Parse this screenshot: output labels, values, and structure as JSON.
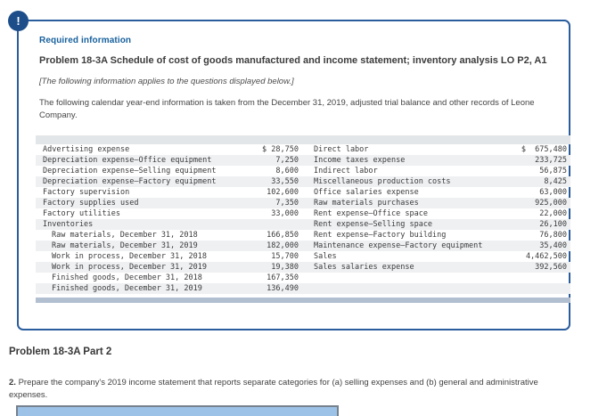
{
  "colors": {
    "box_border_blue": "#2a5d9e",
    "alert_circle_blue": "#1d4e89",
    "required_label_blue": "#17609d",
    "row_stripe_gray": "#eef0f2",
    "scrollband_blue_gray": "#b2bfd0",
    "bottom_bar_blue": "#9cc2e8"
  },
  "alert": {
    "icon_glyph": "!"
  },
  "box": {
    "required_label": "Required information",
    "title": "Problem 18-3A Schedule of cost of goods manufactured and income statement; inventory analysis LO P2, A1",
    "applies_note": "[The following information applies to the questions displayed below.]",
    "intro": "The following calendar year-end information is taken from the December 31, 2019, adjusted trial balance and other records of Leone Company."
  },
  "table": {
    "rows": [
      {
        "l1": "Advertising expense",
        "v1": "$ 28,750",
        "l2": "Direct labor",
        "v2": "$  675,480",
        "indent": false
      },
      {
        "l1": "Depreciation expense—Office equipment",
        "v1": "7,250",
        "l2": "Income taxes expense",
        "v2": "233,725",
        "indent": false
      },
      {
        "l1": "Depreciation expense—Selling equipment",
        "v1": "8,600",
        "l2": "Indirect labor",
        "v2": "56,875",
        "indent": false
      },
      {
        "l1": "Depreciation expense—Factory equipment",
        "v1": "33,550",
        "l2": "Miscellaneous production costs",
        "v2": "8,425",
        "indent": false
      },
      {
        "l1": "Factory supervision",
        "v1": "102,600",
        "l2": "Office salaries expense",
        "v2": "63,000",
        "indent": false
      },
      {
        "l1": "Factory supplies used",
        "v1": "7,350",
        "l2": "Raw materials purchases",
        "v2": "925,000",
        "indent": false
      },
      {
        "l1": "Factory utilities",
        "v1": "33,000",
        "l2": "Rent expense—Office space",
        "v2": "22,000",
        "indent": false
      },
      {
        "l1": "Inventories",
        "v1": "",
        "l2": "Rent expense—Selling space",
        "v2": "26,100",
        "indent": false
      },
      {
        "l1": "Raw materials, December 31, 2018",
        "v1": "166,850",
        "l2": "Rent expense—Factory building",
        "v2": "76,800",
        "indent": true
      },
      {
        "l1": "Raw materials, December 31, 2019",
        "v1": "182,000",
        "l2": "Maintenance expense—Factory equipment",
        "v2": "35,400",
        "indent": true
      },
      {
        "l1": "Work in process, December 31, 2018",
        "v1": "15,700",
        "l2": "Sales",
        "v2": "4,462,500",
        "indent": true
      },
      {
        "l1": "Work in process, December 31, 2019",
        "v1": "19,380",
        "l2": "Sales salaries expense",
        "v2": "392,560",
        "indent": true
      },
      {
        "l1": "Finished goods, December 31, 2018",
        "v1": "167,350",
        "l2": "",
        "v2": "",
        "indent": true
      },
      {
        "l1": "Finished goods, December 31, 2019",
        "v1": "136,490",
        "l2": "",
        "v2": "",
        "indent": true
      }
    ]
  },
  "part2": {
    "heading": "Problem 18-3A Part 2",
    "item_number": "2.",
    "instruction": " Prepare the company's 2019 income statement that reports separate categories for (a) selling expenses and (b) general and administrative expenses."
  }
}
